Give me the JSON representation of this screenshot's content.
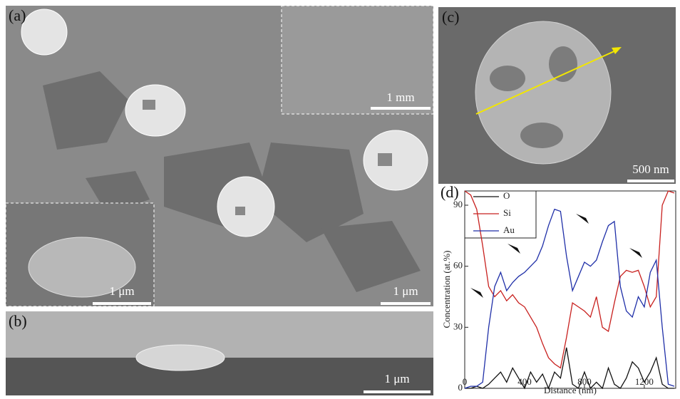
{
  "figure": {
    "panel_labels": [
      "(a)",
      "(b)",
      "(c)",
      "(d)"
    ],
    "scale_bars": [
      "1 mm",
      "1 μm",
      "1 μm",
      "1 μm",
      "500 nm"
    ]
  },
  "chart_data": {
    "type": "line",
    "x": [
      0,
      40,
      80,
      120,
      160,
      200,
      240,
      280,
      320,
      360,
      400,
      440,
      480,
      520,
      560,
      600,
      640,
      680,
      720,
      760,
      800,
      840,
      880,
      920,
      960,
      1000,
      1040,
      1080,
      1120,
      1160,
      1200,
      1240,
      1280,
      1320,
      1360,
      1400
    ],
    "series": [
      {
        "name": "O",
        "color": "#111111",
        "values": [
          0,
          0,
          1,
          0,
          2,
          5,
          8,
          3,
          10,
          5,
          0,
          8,
          3,
          7,
          0,
          8,
          5,
          20,
          2,
          0,
          8,
          0,
          3,
          0,
          10,
          2,
          0,
          5,
          13,
          10,
          3,
          8,
          15,
          2,
          0,
          0
        ]
      },
      {
        "name": "Si",
        "color": "#c8201e",
        "values": [
          97,
          95,
          88,
          70,
          50,
          45,
          48,
          43,
          46,
          42,
          40,
          35,
          30,
          22,
          15,
          12,
          10,
          25,
          42,
          40,
          38,
          35,
          45,
          30,
          28,
          42,
          55,
          58,
          57,
          58,
          50,
          40,
          45,
          90,
          97,
          96
        ]
      },
      {
        "name": "Au",
        "color": "#1f2fa8",
        "values": [
          0,
          1,
          1,
          3,
          30,
          50,
          57,
          48,
          52,
          55,
          57,
          60,
          63,
          70,
          80,
          88,
          87,
          65,
          48,
          55,
          62,
          60,
          63,
          72,
          80,
          82,
          50,
          38,
          35,
          45,
          40,
          57,
          63,
          30,
          2,
          1
        ]
      }
    ],
    "xlabel": "Distance (nm)",
    "ylabel": "Concentration (at.%)",
    "xlim": [
      0,
      1410
    ],
    "ylim": [
      0,
      97
    ],
    "xticks": [
      0,
      400,
      800,
      1200
    ],
    "yticks": [
      0,
      30,
      60,
      90
    ]
  }
}
